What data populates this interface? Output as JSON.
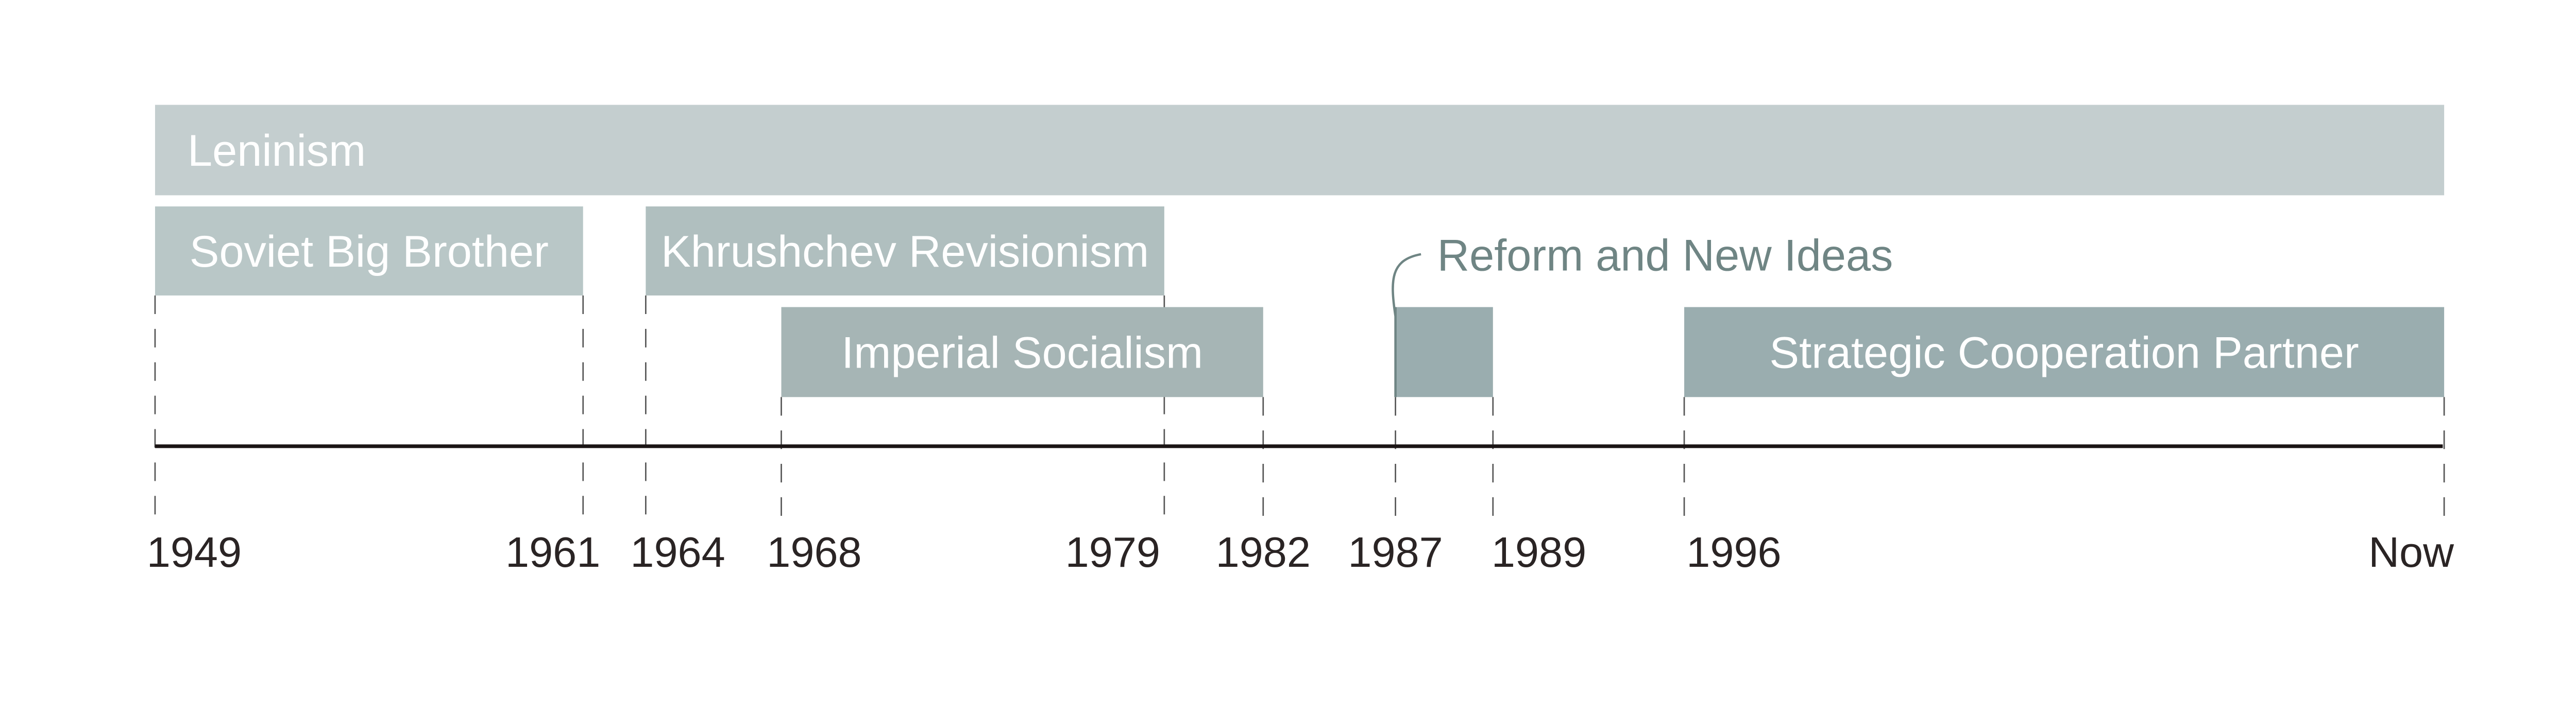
{
  "timeline": {
    "periods": [
      {
        "id": "leninism",
        "label": "Leninism",
        "start": "1949",
        "end": "Now",
        "row": 0,
        "color": "#c4cecf",
        "label_align": "left"
      },
      {
        "id": "soviet-big-brother",
        "label": "Soviet Big Brother",
        "start": "1949",
        "end": "1961",
        "row": 1,
        "color": "#b9c7c7",
        "label_align": "center"
      },
      {
        "id": "khrushchev-revisionism",
        "label": "Khrushchev Revisionism",
        "start": "1964",
        "end": "1979",
        "row": 1,
        "color": "#b0bfbf",
        "label_align": "center"
      },
      {
        "id": "imperial-socialism",
        "label": "Imperial Socialism",
        "start": "1968",
        "end": "1982",
        "row": 2,
        "color": "#a6b5b5",
        "label_align": "center"
      },
      {
        "id": "reform-and-new-ideas",
        "label": "Reform and New Ideas",
        "start": "1987",
        "end": "1989",
        "row": 2,
        "color": "#9aadaf",
        "label_align": "callout"
      },
      {
        "id": "strategic-cooperation-partner",
        "label": "Strategic Cooperation Partner",
        "start": "1996",
        "end": "Now",
        "row": 2,
        "color": "#9aadaf",
        "label_align": "center"
      }
    ],
    "ticks": [
      "1949",
      "1961",
      "1964",
      "1968",
      "1979",
      "1982",
      "1987",
      "1989",
      "1996",
      "Now"
    ],
    "axis_color": "#1a1414",
    "callout_color": "#6f8584"
  }
}
